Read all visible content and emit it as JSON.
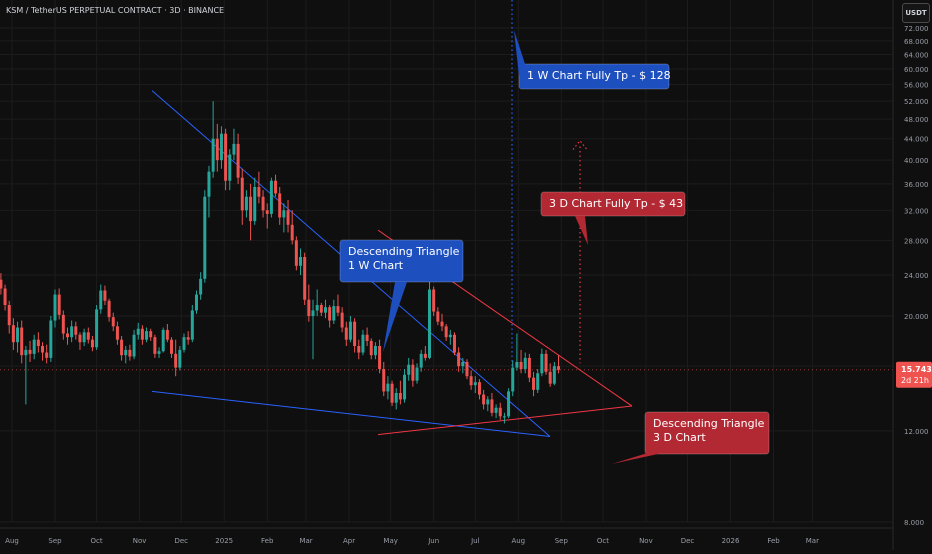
{
  "header": {
    "title": "KSM / TetherUS PERPETUAL CONTRACT · 3D · BINANCE",
    "currency_button": "USDT"
  },
  "price_tag": {
    "value": "15.743",
    "countdown": "2d 21h"
  },
  "colors": {
    "background": "#0f0f0f",
    "grid": "#1c1c1c",
    "up": "#26a69a",
    "down": "#ef5350",
    "blue_line": "#2962ff",
    "red_line": "#f23645",
    "blue_box": "#1e4fbf",
    "red_box": "#b22833"
  },
  "annotations": {
    "one_week_target": "1 W Chart Fully Tp - $ 128",
    "three_day_target": "3 D Chart Fully Tp - $ 43",
    "desc_triangle_1w_line1": "Descending Triangle",
    "desc_triangle_1w_line2": "1 W Chart",
    "desc_triangle_3d_line1": "Descending Triangle",
    "desc_triangle_3d_line2": "3 D Chart"
  },
  "chart_data": {
    "type": "candlestick",
    "title": "KSM / TetherUS PERPETUAL CONTRACT · 3D · BINANCE",
    "yscale": "log",
    "ylim": [
      7.9,
      72
    ],
    "y_ticks": [
      "72.000",
      "68.000",
      "64.000",
      "60.000",
      "56.000",
      "52.000",
      "48.000",
      "44.000",
      "40.000",
      "36.000",
      "32.000",
      "28.000",
      "24.000",
      "20.000",
      "16.000",
      "12.000",
      "8.000"
    ],
    "y_tick_values": [
      72,
      68,
      64,
      60,
      56,
      52,
      48,
      44,
      40,
      36,
      32,
      28,
      24,
      20,
      16,
      12,
      8
    ],
    "x_ticks": [
      "Aug",
      "Sep",
      "Oct",
      "Nov",
      "Dec",
      "2025",
      "Feb",
      "Mar",
      "Apr",
      "May",
      "Jun",
      "Jul",
      "Aug",
      "Sep",
      "Oct",
      "Nov",
      "Dec",
      "2026",
      "Feb",
      "Mar"
    ],
    "x_tick_dates": [
      "2024-08-01",
      "2024-09-01",
      "2024-10-01",
      "2024-11-01",
      "2024-12-01",
      "2025-01-01",
      "2025-02-01",
      "2025-03-01",
      "2025-04-01",
      "2025-05-01",
      "2025-06-01",
      "2025-07-01",
      "2025-08-01",
      "2025-09-01",
      "2025-10-01",
      "2025-11-01",
      "2025-12-01",
      "2026-01-01",
      "2026-02-01",
      "2026-03-01"
    ],
    "grid": true,
    "last_price": 15.743,
    "candle_interval": "3D",
    "first_candle_date": "2024-07-24",
    "candles": [
      [
        23.5,
        24.2,
        22.0,
        22.6
      ],
      [
        22.6,
        23.0,
        20.5,
        21.0
      ],
      [
        21.0,
        21.4,
        18.5,
        19.2
      ],
      [
        19.2,
        19.8,
        17.2,
        17.8
      ],
      [
        17.8,
        19.5,
        17.0,
        19.0
      ],
      [
        19.0,
        19.6,
        16.2,
        16.8
      ],
      [
        16.8,
        17.5,
        13.5,
        17.2
      ],
      [
        17.2,
        17.9,
        16.3,
        16.9
      ],
      [
        16.9,
        18.4,
        16.5,
        18.0
      ],
      [
        18.0,
        18.6,
        17.0,
        17.5
      ],
      [
        17.5,
        17.8,
        16.4,
        17.0
      ],
      [
        17.0,
        17.6,
        16.2,
        16.6
      ],
      [
        16.6,
        20.0,
        16.3,
        19.6
      ],
      [
        19.6,
        22.5,
        19.0,
        22.0
      ],
      [
        22.0,
        22.6,
        19.7,
        20.1
      ],
      [
        20.1,
        20.5,
        18.0,
        18.5
      ],
      [
        18.5,
        19.0,
        17.6,
        18.2
      ],
      [
        18.2,
        19.6,
        17.8,
        19.1
      ],
      [
        19.1,
        19.5,
        18.0,
        18.4
      ],
      [
        18.4,
        18.6,
        17.2,
        17.8
      ],
      [
        17.8,
        18.9,
        17.5,
        18.6
      ],
      [
        18.6,
        19.0,
        17.7,
        18.0
      ],
      [
        18.0,
        18.3,
        17.1,
        17.4
      ],
      [
        17.4,
        21.0,
        17.2,
        20.6
      ],
      [
        20.6,
        23.0,
        20.2,
        22.4
      ],
      [
        22.4,
        22.9,
        21.0,
        21.4
      ],
      [
        21.4,
        21.6,
        19.5,
        19.9
      ],
      [
        19.9,
        20.3,
        18.7,
        19.1
      ],
      [
        19.1,
        19.5,
        17.6,
        18.0
      ],
      [
        18.0,
        18.3,
        16.4,
        16.8
      ],
      [
        16.8,
        17.5,
        16.2,
        17.2
      ],
      [
        17.2,
        17.6,
        16.4,
        16.7
      ],
      [
        16.7,
        18.8,
        16.5,
        18.4
      ],
      [
        18.4,
        19.4,
        18.0,
        18.9
      ],
      [
        18.9,
        19.2,
        17.6,
        18.0
      ],
      [
        18.0,
        19.0,
        17.8,
        18.7
      ],
      [
        18.7,
        18.9,
        17.9,
        18.2
      ],
      [
        18.2,
        18.4,
        16.6,
        16.9
      ],
      [
        16.9,
        17.4,
        16.6,
        17.1
      ],
      [
        17.1,
        19.0,
        17.0,
        18.8
      ],
      [
        18.8,
        19.3,
        17.8,
        18.0
      ],
      [
        18.0,
        18.2,
        16.6,
        16.9
      ],
      [
        16.9,
        18.0,
        15.3,
        15.9
      ],
      [
        15.9,
        17.5,
        15.7,
        17.2
      ],
      [
        17.2,
        18.5,
        17.0,
        18.2
      ],
      [
        18.2,
        18.7,
        17.6,
        18.0
      ],
      [
        18.0,
        21.0,
        17.8,
        20.5
      ],
      [
        20.5,
        22.4,
        20.2,
        22.0
      ],
      [
        22.0,
        24.3,
        21.5,
        23.6
      ],
      [
        23.6,
        35.0,
        23.2,
        34.0
      ],
      [
        34.0,
        39.0,
        31.0,
        38.0
      ],
      [
        38.0,
        52.0,
        37.0,
        44.0
      ],
      [
        44.0,
        47.0,
        38.0,
        40.0
      ],
      [
        40.0,
        46.5,
        38.5,
        45.0
      ],
      [
        45.0,
        46.0,
        35.0,
        36.5
      ],
      [
        36.5,
        42.0,
        35.0,
        41.0
      ],
      [
        41.0,
        46.0,
        40.0,
        43.0
      ],
      [
        43.0,
        45.0,
        36.0,
        37.0
      ],
      [
        37.0,
        38.5,
        30.0,
        32.0
      ],
      [
        32.0,
        35.0,
        31.0,
        34.0
      ],
      [
        34.0,
        36.0,
        28.0,
        30.5
      ],
      [
        30.5,
        37.0,
        30.0,
        35.5
      ],
      [
        35.5,
        38.0,
        33.0,
        34.0
      ],
      [
        34.0,
        35.0,
        31.0,
        32.0
      ],
      [
        32.0,
        33.0,
        29.5,
        31.5
      ],
      [
        31.5,
        37.0,
        31.0,
        36.5
      ],
      [
        36.5,
        37.5,
        34.0,
        34.5
      ],
      [
        34.5,
        35.5,
        30.0,
        31.0
      ],
      [
        31.0,
        33.0,
        29.0,
        32.0
      ],
      [
        32.0,
        33.5,
        29.0,
        30.0
      ],
      [
        30.0,
        32.0,
        27.5,
        28.0
      ],
      [
        28.0,
        28.5,
        24.5,
        25.0
      ],
      [
        25.0,
        27.0,
        24.0,
        26.0
      ],
      [
        26.0,
        26.5,
        21.0,
        21.5
      ],
      [
        21.5,
        23.0,
        19.5,
        20.0
      ],
      [
        20.0,
        21.5,
        16.5,
        20.5
      ],
      [
        20.5,
        22.5,
        20.0,
        21.0
      ],
      [
        21.0,
        21.2,
        20.0,
        20.3
      ],
      [
        20.3,
        21.5,
        19.8,
        20.8
      ],
      [
        20.8,
        21.0,
        19.0,
        19.6
      ],
      [
        19.6,
        21.5,
        19.3,
        20.9
      ],
      [
        20.9,
        22.0,
        20.0,
        20.3
      ],
      [
        20.3,
        20.8,
        18.6,
        19.0
      ],
      [
        19.0,
        19.5,
        17.5,
        18.0
      ],
      [
        18.0,
        20.0,
        17.8,
        19.5
      ],
      [
        19.5,
        19.8,
        17.0,
        17.5
      ],
      [
        17.5,
        18.0,
        16.5,
        17.0
      ],
      [
        17.0,
        18.8,
        16.8,
        18.4
      ],
      [
        18.4,
        19.0,
        17.5,
        17.9
      ],
      [
        17.9,
        18.1,
        16.5,
        16.8
      ],
      [
        16.8,
        17.8,
        16.5,
        17.5
      ],
      [
        17.5,
        18.0,
        15.5,
        15.8
      ],
      [
        15.8,
        16.3,
        14.0,
        14.3
      ],
      [
        14.3,
        15.3,
        13.8,
        14.8
      ],
      [
        14.8,
        15.0,
        13.4,
        13.6
      ],
      [
        13.6,
        14.5,
        13.2,
        14.2
      ],
      [
        14.2,
        15.0,
        13.5,
        13.8
      ],
      [
        13.8,
        15.8,
        13.6,
        15.4
      ],
      [
        15.4,
        16.6,
        15.0,
        16.1
      ],
      [
        16.1,
        16.5,
        14.6,
        15.0
      ],
      [
        15.0,
        16.2,
        14.8,
        15.9
      ],
      [
        15.9,
        17.2,
        15.6,
        16.9
      ],
      [
        16.9,
        17.5,
        16.4,
        16.6
      ],
      [
        16.6,
        24.0,
        16.5,
        22.5
      ],
      [
        22.5,
        22.8,
        20.0,
        20.4
      ],
      [
        20.4,
        20.8,
        19.2,
        19.5
      ],
      [
        19.5,
        20.2,
        18.7,
        19.1
      ],
      [
        19.1,
        19.3,
        17.9,
        18.2
      ],
      [
        18.2,
        18.8,
        17.6,
        18.4
      ],
      [
        18.4,
        18.6,
        16.8,
        17.0
      ],
      [
        17.0,
        17.4,
        15.6,
        16.0
      ],
      [
        16.0,
        16.6,
        15.5,
        16.3
      ],
      [
        16.3,
        16.5,
        15.1,
        15.3
      ],
      [
        15.3,
        15.7,
        14.4,
        14.7
      ],
      [
        14.7,
        15.3,
        14.2,
        14.9
      ],
      [
        14.9,
        15.1,
        13.8,
        14.1
      ],
      [
        14.1,
        14.4,
        13.2,
        13.5
      ],
      [
        13.5,
        14.0,
        13.1,
        13.8
      ],
      [
        13.8,
        14.2,
        12.8,
        13.0
      ],
      [
        13.0,
        13.5,
        12.7,
        13.3
      ],
      [
        13.3,
        13.6,
        12.6,
        12.8
      ],
      [
        12.8,
        13.0,
        12.4,
        12.8
      ],
      [
        12.8,
        14.5,
        12.7,
        14.3
      ],
      [
        14.3,
        16.4,
        14.0,
        15.9
      ],
      [
        15.9,
        18.5,
        15.7,
        16.3
      ],
      [
        16.3,
        17.2,
        15.5,
        15.8
      ],
      [
        15.8,
        17.0,
        15.5,
        16.6
      ],
      [
        16.6,
        16.9,
        14.9,
        15.2
      ],
      [
        15.2,
        15.6,
        14.0,
        14.4
      ],
      [
        14.4,
        15.8,
        14.2,
        15.5
      ],
      [
        15.5,
        17.3,
        15.3,
        16.9
      ],
      [
        16.9,
        17.2,
        15.4,
        15.6
      ],
      [
        15.6,
        16.2,
        14.6,
        14.8
      ],
      [
        14.8,
        16.3,
        14.7,
        16.0
      ],
      [
        16.0,
        16.8,
        15.5,
        15.743
      ]
    ],
    "projections": [
      {
        "label": "1 W Chart Fully Tp - $ 128",
        "target": 128
      },
      {
        "label": "3 D Chart Fully Tp - $ 43",
        "target": 43
      }
    ]
  }
}
